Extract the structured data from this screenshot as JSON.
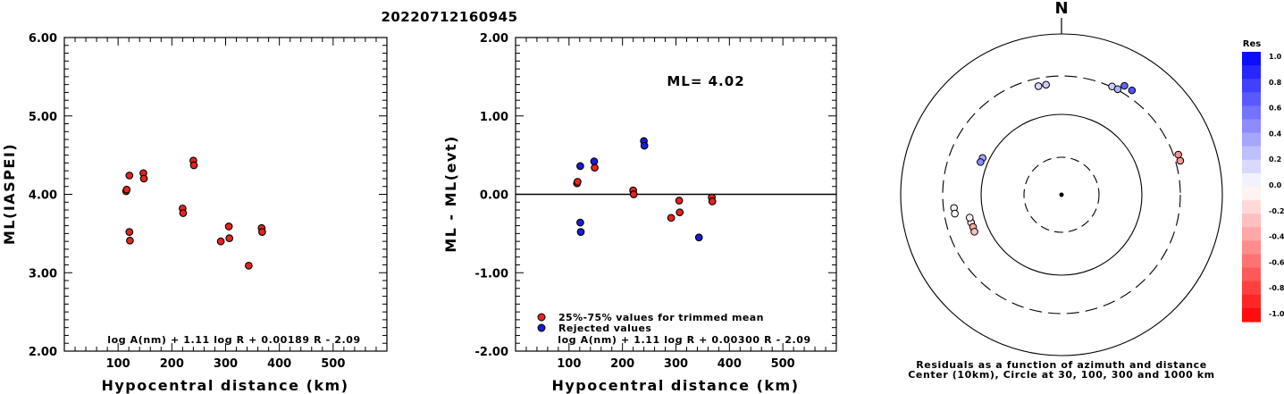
{
  "title": "20220712160945",
  "chart_data": [
    {
      "type": "scatter",
      "xlabel": "Hypocentral distance (km)",
      "ylabel": "ML(IASPEI)",
      "xlim": [
        0,
        600
      ],
      "ylim": [
        2.0,
        6.0
      ],
      "xticks": [
        "100",
        "200",
        "300",
        "400",
        "500"
      ],
      "xtick_values": [
        100,
        200,
        300,
        400,
        500
      ],
      "yticks": [
        "2.00",
        "3.00",
        "4.00",
        "5.00",
        "6.00"
      ],
      "ytick_values": [
        2.0,
        3.0,
        4.0,
        5.0,
        6.0
      ],
      "formula": "log A(nm) + 1.11 log R + 0.00189 R - 2.09",
      "marker_color": "#e8231e",
      "points": [
        {
          "x": 115,
          "y": 4.04
        },
        {
          "x": 116,
          "y": 4.06
        },
        {
          "x": 121,
          "y": 4.24
        },
        {
          "x": 121,
          "y": 3.52
        },
        {
          "x": 122,
          "y": 3.41
        },
        {
          "x": 147,
          "y": 4.27
        },
        {
          "x": 148,
          "y": 4.2
        },
        {
          "x": 220,
          "y": 3.82
        },
        {
          "x": 221,
          "y": 3.76
        },
        {
          "x": 240,
          "y": 4.43
        },
        {
          "x": 241,
          "y": 4.37
        },
        {
          "x": 291,
          "y": 3.4
        },
        {
          "x": 306,
          "y": 3.59
        },
        {
          "x": 307,
          "y": 3.44
        },
        {
          "x": 343,
          "y": 3.09
        },
        {
          "x": 367,
          "y": 3.57
        },
        {
          "x": 368,
          "y": 3.52
        }
      ]
    },
    {
      "type": "scatter",
      "xlabel": "Hypocentral distance (km)",
      "ylabel": "ML - ML(evt)",
      "xlim": [
        0,
        600
      ],
      "ylim": [
        -2.0,
        2.0
      ],
      "xticks": [
        "100",
        "200",
        "300",
        "400",
        "500"
      ],
      "xtick_values": [
        100,
        200,
        300,
        400,
        500
      ],
      "yticks": [
        "-2.00",
        "-1.00",
        "0.00",
        "1.00",
        "2.00"
      ],
      "ytick_values": [
        -2.0,
        -1.0,
        0.0,
        1.0,
        2.0
      ],
      "reference_line": 0.0,
      "annotation": "ML= 4.02",
      "formula": "log A(nm) + 1.11 log R + 0.00300 R - 2.09",
      "legend": [
        {
          "label": "25%-75% values for trimmed mean",
          "color": "#e8231e"
        },
        {
          "label": "Rejected values",
          "color": "#1a1adb"
        }
      ],
      "series": [
        {
          "color": "#e8231e",
          "points": [
            {
              "x": 115,
              "y": 0.14
            },
            {
              "x": 116,
              "y": 0.16
            },
            {
              "x": 148,
              "y": 0.34
            },
            {
              "x": 220,
              "y": 0.05
            },
            {
              "x": 221,
              "y": 0.0
            },
            {
              "x": 291,
              "y": -0.3
            },
            {
              "x": 306,
              "y": -0.08
            },
            {
              "x": 307,
              "y": -0.23
            },
            {
              "x": 367,
              "y": -0.04
            },
            {
              "x": 368,
              "y": -0.09
            }
          ]
        },
        {
          "color": "#1a1adb",
          "points": [
            {
              "x": 121,
              "y": 0.36
            },
            {
              "x": 121,
              "y": -0.36
            },
            {
              "x": 122,
              "y": -0.48
            },
            {
              "x": 147,
              "y": 0.42
            },
            {
              "x": 240,
              "y": 0.68
            },
            {
              "x": 241,
              "y": 0.62
            },
            {
              "x": 343,
              "y": -0.55
            }
          ]
        }
      ]
    }
  ],
  "polar": {
    "north_label": "N",
    "caption_line1": "Residuals as a function of azimuth and distance",
    "caption_line2": "Center (10km), Circle at 30, 100, 300 and 1000 km",
    "points": [
      {
        "az": 253,
        "dist": 150,
        "res": -0.15
      },
      {
        "az": 256,
        "dist": 150,
        "res": -0.05
      },
      {
        "az": 250,
        "dist": 148,
        "res": -0.35
      },
      {
        "az": 247,
        "dist": 150,
        "res": -0.25
      },
      {
        "az": 263,
        "dist": 222,
        "res": 0.05
      },
      {
        "az": 260,
        "dist": 222,
        "res": 0.0
      },
      {
        "az": 295,
        "dist": 121,
        "res": 0.35
      },
      {
        "az": 292,
        "dist": 122,
        "res": 0.45
      },
      {
        "az": 348,
        "dist": 240,
        "res": 0.15
      },
      {
        "az": 352,
        "dist": 241,
        "res": 0.2
      },
      {
        "az": 25,
        "dist": 306,
        "res": 0.2
      },
      {
        "az": 28,
        "dist": 307,
        "res": 0.3
      },
      {
        "az": 30,
        "dist": 367,
        "res": 0.62
      },
      {
        "az": 34,
        "dist": 368,
        "res": 0.68
      },
      {
        "az": 74,
        "dist": 343,
        "res": -0.4
      },
      {
        "az": 71,
        "dist": 343,
        "res": -0.45
      }
    ]
  },
  "colorbar": {
    "title": "Res",
    "labels": [
      "1.0",
      "0.8",
      "0.6",
      "0.4",
      "0.2",
      "0.0",
      "-0.2",
      "-0.4",
      "-0.6",
      "-0.8",
      "-1.0"
    ]
  }
}
